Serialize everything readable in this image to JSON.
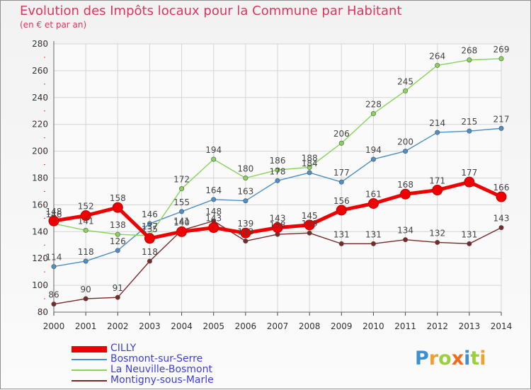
{
  "chart_data": {
    "type": "line",
    "title": "Evolution des Impôts locaux pour la Commune par Habitant",
    "subtitle": "(en € et par an)",
    "x": [
      "2000",
      "2001",
      "2002",
      "2003",
      "2004",
      "2005",
      "2006",
      "2007",
      "2008",
      "2009",
      "2010",
      "2011",
      "2012",
      "2013",
      "2014"
    ],
    "ylim": [
      80,
      280
    ],
    "yticks": [
      80,
      100,
      120,
      140,
      160,
      180,
      200,
      220,
      240,
      260,
      280
    ],
    "grid": true,
    "legend_position": "bottom-left",
    "series": [
      {
        "name": "CILLY",
        "color": "#ee0000",
        "values": [
          148,
          152,
          158,
          135,
          140,
          143,
          139,
          143,
          145,
          156,
          161,
          168,
          171,
          177,
          166
        ]
      },
      {
        "name": "Bosmont-sur-Serre",
        "color": "#4c8ec8",
        "values": [
          114,
          118,
          126,
          146,
          155,
          164,
          163,
          178,
          184,
          177,
          194,
          200,
          214,
          215,
          217
        ]
      },
      {
        "name": "La Neuville-Bosmont",
        "color": "#88d45a",
        "values": [
          146,
          141,
          138,
          137,
          172,
          194,
          180,
          186,
          188,
          206,
          228,
          245,
          264,
          268,
          269
        ]
      },
      {
        "name": "Montigny-sous-Marle",
        "color": "#7a2828",
        "values": [
          86,
          90,
          91,
          118,
          141,
          148,
          133,
          138,
          139,
          131,
          131,
          134,
          132,
          131,
          143
        ]
      }
    ],
    "data_labels": {
      "CILLY": [
        "148",
        "152",
        "158",
        "135",
        "140",
        "143",
        "139",
        "143",
        "145",
        "156",
        "161",
        "168",
        "171",
        "177",
        "166"
      ],
      "Bosmont-sur-Serre": [
        "114",
        "118",
        "126",
        "146",
        "155",
        "164",
        "163",
        "178",
        "184",
        "177",
        "194",
        "200",
        "214",
        "215",
        "217"
      ],
      "La Neuville-Bosmont": [
        "146",
        "141",
        "138",
        "137",
        "172",
        "194",
        "180",
        "186",
        "188",
        "206",
        "228",
        "245",
        "264",
        "268",
        "269"
      ],
      "Montigny-sous-Marle": [
        "86",
        "90",
        "91",
        "118",
        "141",
        "148",
        "133",
        "138",
        "139",
        "131",
        "131",
        "134",
        "132",
        "131",
        "143"
      ]
    }
  },
  "branding": {
    "logo_letters": [
      "P",
      "r",
      "o",
      "x",
      "i",
      "t",
      "i"
    ],
    "logo_colors": [
      "#3f8fd0",
      "#f0a030",
      "#9ccf3c",
      "#f26a1b",
      "#3f8fd0",
      "#9ccf3c",
      "#f0a030"
    ]
  }
}
